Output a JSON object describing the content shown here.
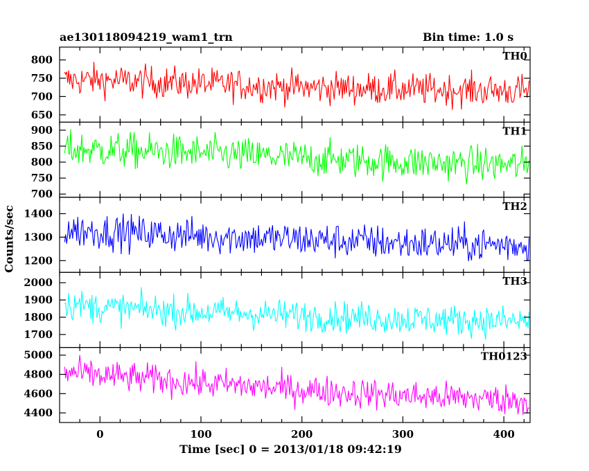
{
  "header": {
    "title": "ae130118094219_wam1_trn",
    "bin_time": "Bin time: 1.0 s"
  },
  "chart_data": {
    "type": "line",
    "xlabel": "Time [sec] 0 = 2013/01/18 09:42:19",
    "ylabel": "Counts/sec",
    "x_range": [
      -40,
      426
    ],
    "x_ticks": [
      0,
      100,
      200,
      300,
      400
    ],
    "x_step": 1,
    "grid": false,
    "panels": [
      {
        "name": "TH0",
        "color": "#ff0000",
        "ylim": [
          630,
          835
        ],
        "y_ticks": [
          650,
          700,
          750,
          800
        ],
        "trend": [
          [
            -35,
            745
          ],
          [
            0,
            745
          ],
          [
            100,
            735
          ],
          [
            200,
            725
          ],
          [
            300,
            720
          ],
          [
            425,
            715
          ]
        ],
        "noise": 22
      },
      {
        "name": "TH1",
        "color": "#00ff00",
        "ylim": [
          690,
          925
        ],
        "y_ticks": [
          700,
          750,
          800,
          850,
          900
        ],
        "trend": [
          [
            -35,
            840
          ],
          [
            0,
            838
          ],
          [
            100,
            828
          ],
          [
            200,
            812
          ],
          [
            300,
            800
          ],
          [
            425,
            790
          ]
        ],
        "noise": 28
      },
      {
        "name": "TH2",
        "color": "#0000ff",
        "ylim": [
          1150,
          1470
        ],
        "y_ticks": [
          1200,
          1300,
          1400
        ],
        "trend": [
          [
            -35,
            1330
          ],
          [
            0,
            1325
          ],
          [
            100,
            1305
          ],
          [
            200,
            1290
          ],
          [
            300,
            1275
          ],
          [
            425,
            1265
          ]
        ],
        "noise": 38
      },
      {
        "name": "TH3",
        "color": "#00ffff",
        "ylim": [
          1625,
          2060
        ],
        "y_ticks": [
          1700,
          1800,
          1900,
          2000
        ],
        "trend": [
          [
            -35,
            1880
          ],
          [
            0,
            1855
          ],
          [
            100,
            1830
          ],
          [
            200,
            1810
          ],
          [
            300,
            1790
          ],
          [
            425,
            1775
          ]
        ],
        "noise": 45
      },
      {
        "name": "TH0123",
        "color": "#ff00ff",
        "ylim": [
          4300,
          5080
        ],
        "y_ticks": [
          4400,
          4600,
          4800,
          5000
        ],
        "trend": [
          [
            -35,
            4820
          ],
          [
            0,
            4790
          ],
          [
            100,
            4710
          ],
          [
            200,
            4640
          ],
          [
            300,
            4580
          ],
          [
            425,
            4530
          ]
        ],
        "noise": 80
      }
    ]
  }
}
